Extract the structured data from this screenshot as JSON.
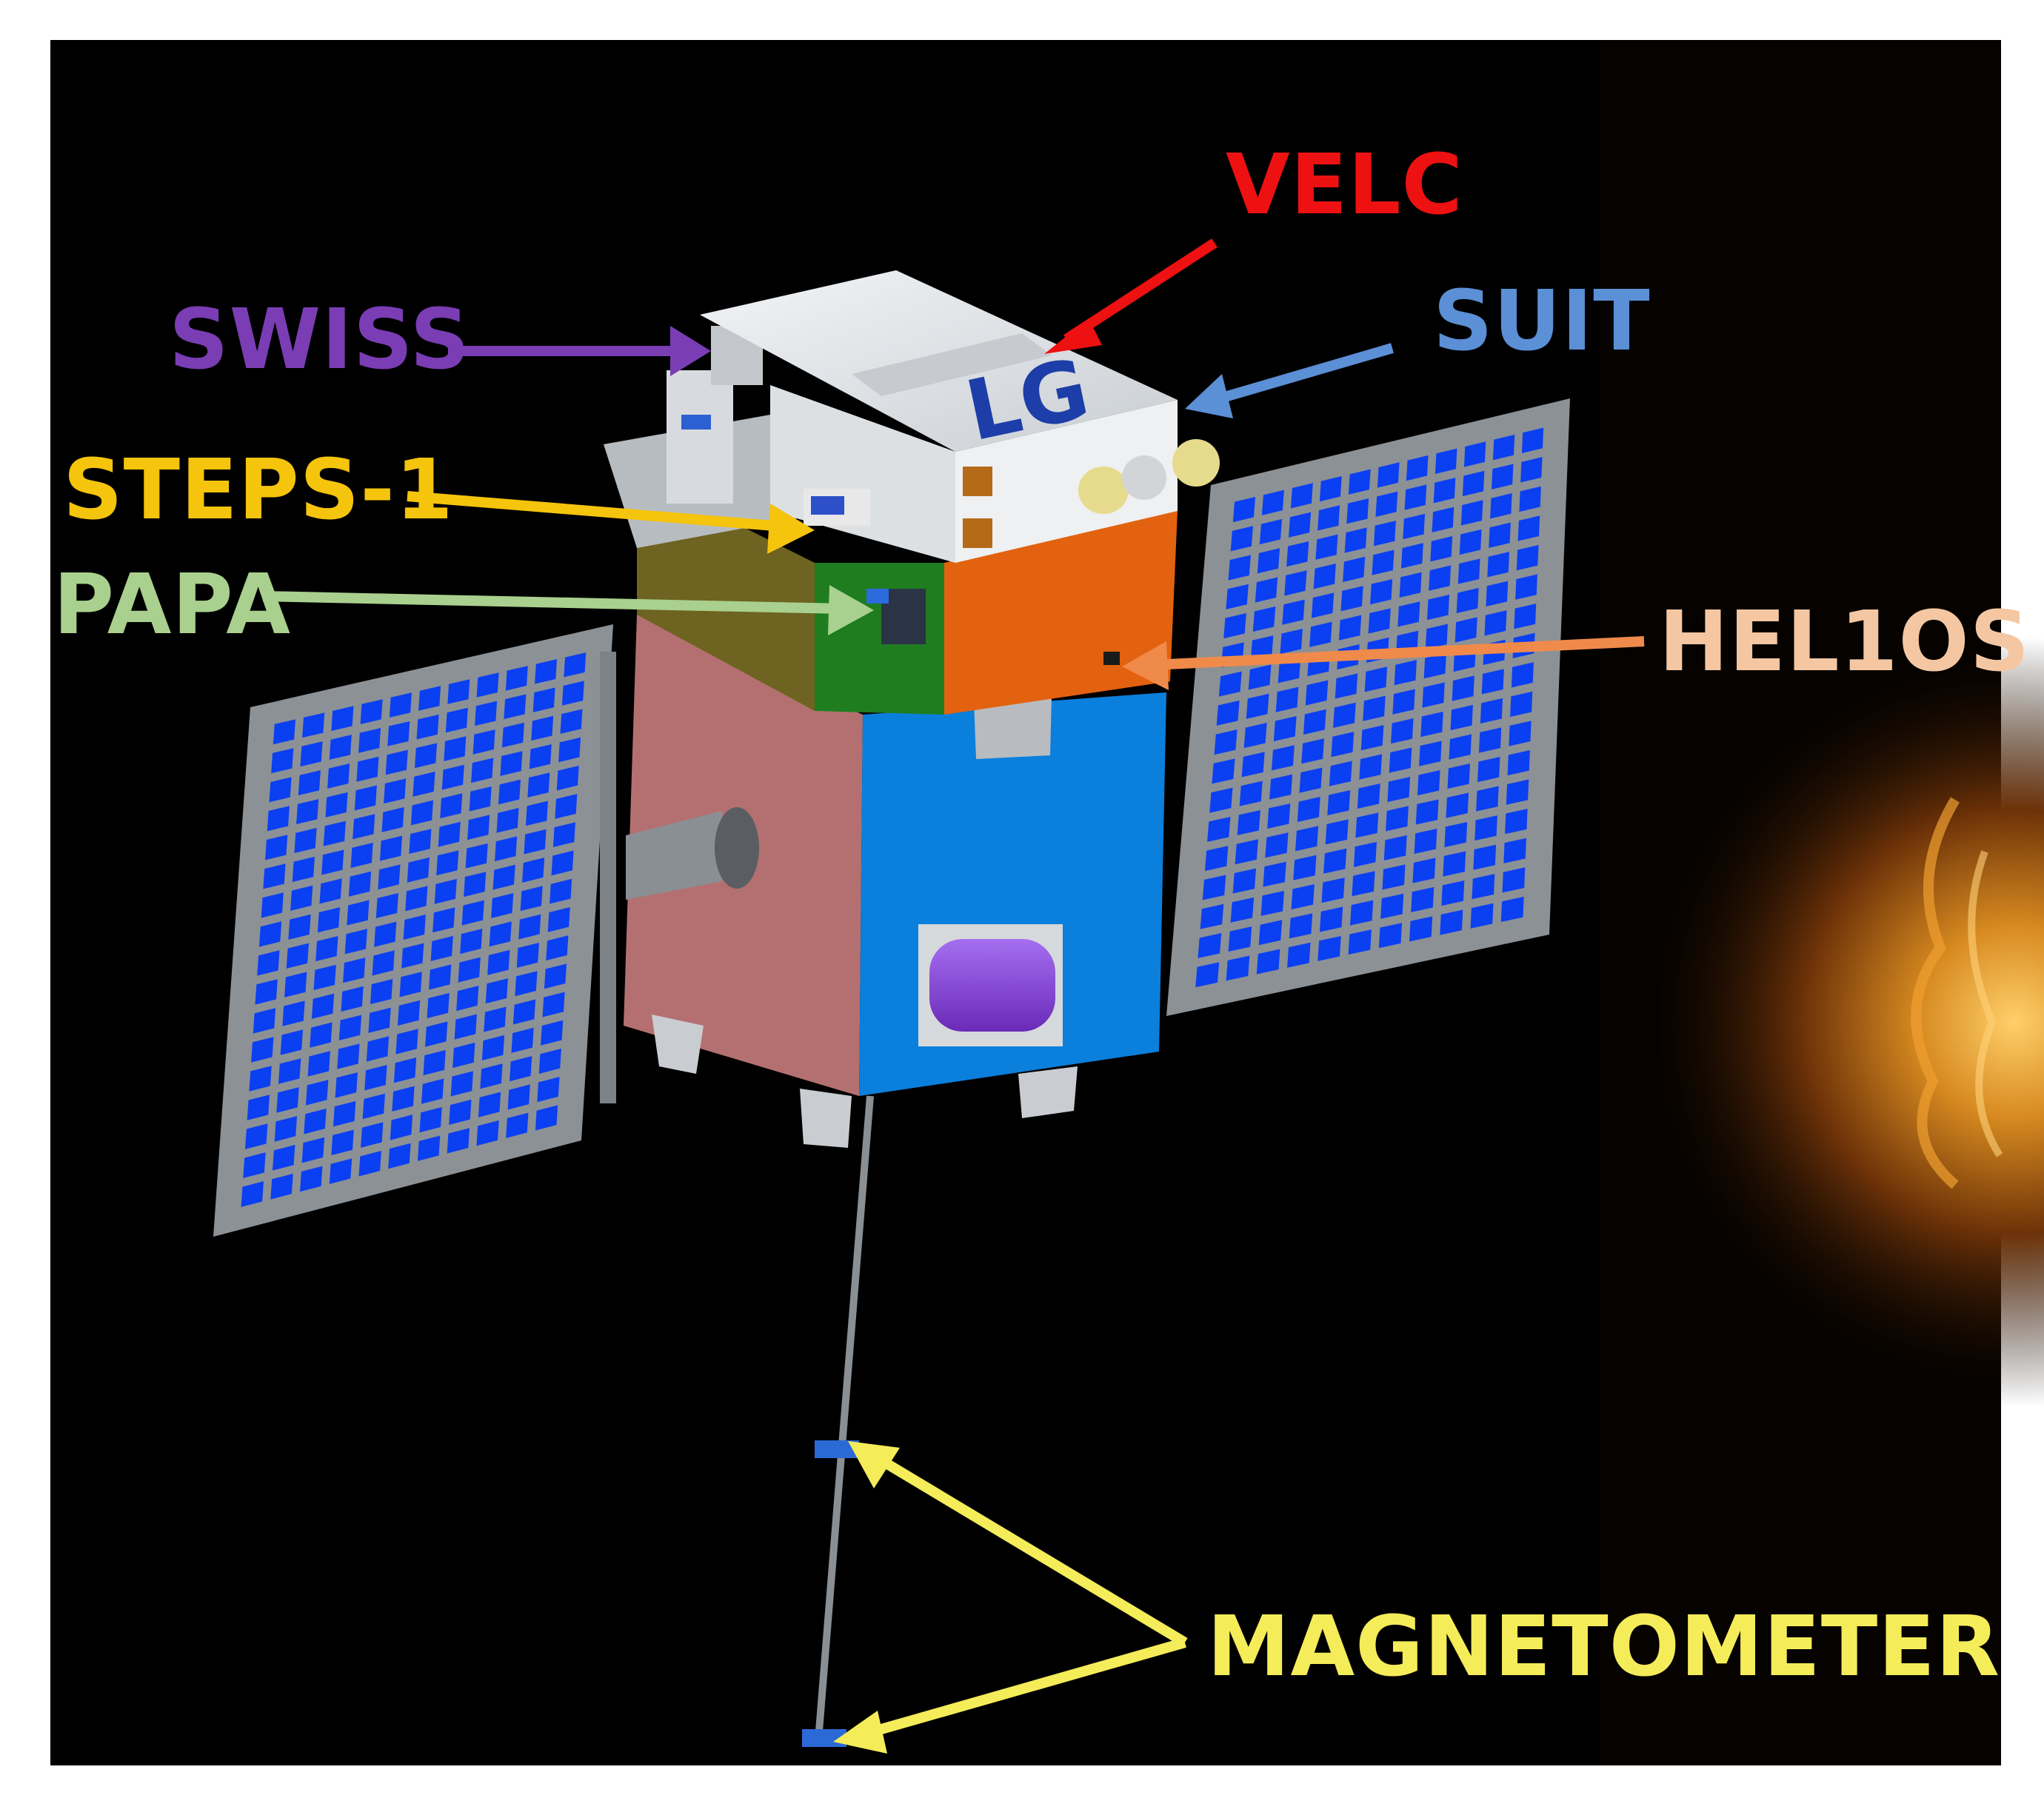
{
  "labels": {
    "velc": {
      "text": "VELC",
      "color": "#ee1111"
    },
    "swiss": {
      "text": "SWISS",
      "color": "#7a3db4"
    },
    "suit": {
      "text": "SUIT",
      "color": "#5b8fd6"
    },
    "steps": {
      "text": "STEPS-1",
      "color": "#f5c40c"
    },
    "papa": {
      "text": "PAPA",
      "color": "#a9d08e"
    },
    "helios": {
      "text": "HEL1OS",
      "color": "#f4c7a2"
    },
    "magnetometer": {
      "text": "MAGNETOMETER",
      "color": "#f5ec5a"
    }
  },
  "spacecraft_text": "LG",
  "colors": {
    "background": "#000000",
    "frame": "#ffffff",
    "panel_cell": "#0b3ff2",
    "panel_frame": "#8c9196",
    "body_blue": "#0b7fdc",
    "body_pink": "#b47070",
    "body_orange": "#e3620f",
    "body_olive": "#6e6320",
    "body_green": "#1f7d1f",
    "top_box": "#e9ecef",
    "tank": "#8a44d8",
    "sun_glow": "#c77a16"
  }
}
